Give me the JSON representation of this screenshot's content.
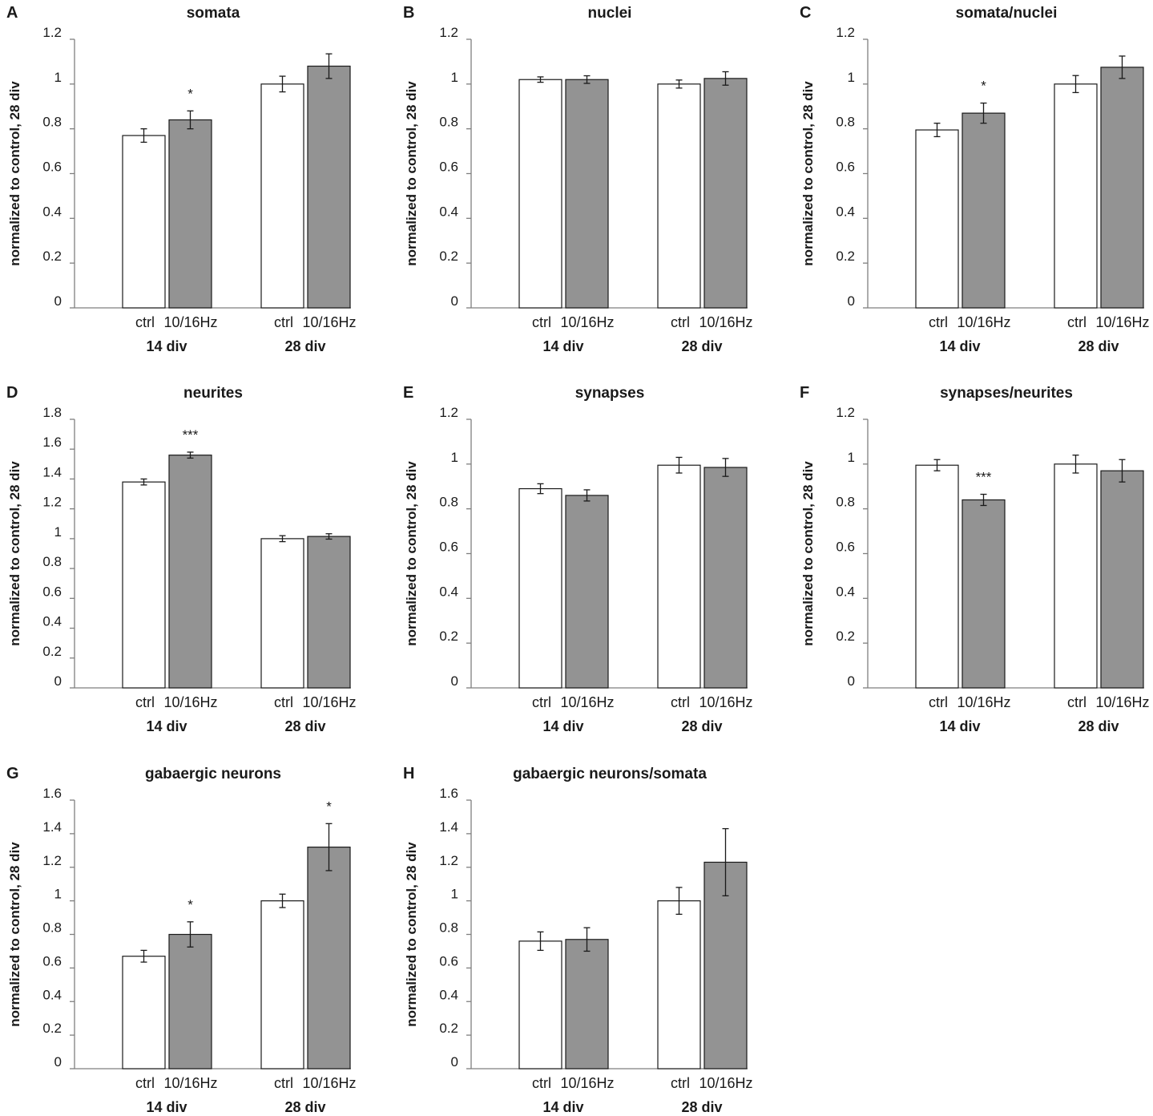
{
  "colors": {
    "ctrl_fill": "#ffffff",
    "treated_fill": "#939393",
    "axis": "#7f7f7f",
    "text": "#1a1a1a"
  },
  "chart_data": [
    {
      "letter": "A",
      "title": "somata",
      "type": "bar",
      "ylabel": "normalized to control, 28 div",
      "ylim": [
        0,
        1.2
      ],
      "ticks": [
        0,
        0.2,
        0.4,
        0.6,
        0.8,
        1,
        1.2
      ],
      "tick_labels": [
        "0",
        "0.2",
        "0.4",
        "0.6",
        "0.8",
        "1",
        "1.2"
      ],
      "groups": [
        {
          "label": "14 div",
          "bars": [
            {
              "label": "ctrl",
              "value": 0.77,
              "err": 0.03,
              "sig": ""
            },
            {
              "label": "10/16Hz",
              "value": 0.84,
              "err": 0.04,
              "sig": "*"
            }
          ]
        },
        {
          "label": "28 div",
          "bars": [
            {
              "label": "ctrl",
              "value": 1.0,
              "err": 0.035,
              "sig": ""
            },
            {
              "label": "10/16Hz",
              "value": 1.08,
              "err": 0.055,
              "sig": ""
            }
          ]
        }
      ]
    },
    {
      "letter": "B",
      "title": "nuclei",
      "type": "bar",
      "ylabel": "normalized to control, 28 div",
      "ylim": [
        0,
        1.2
      ],
      "ticks": [
        0,
        0.2,
        0.4,
        0.6,
        0.8,
        1,
        1.2
      ],
      "tick_labels": [
        "0",
        "0.2",
        "0.4",
        "0.6",
        "0.8",
        "1",
        "1.2"
      ],
      "groups": [
        {
          "label": "14 div",
          "bars": [
            {
              "label": "ctrl",
              "value": 1.02,
              "err": 0.012,
              "sig": ""
            },
            {
              "label": "10/16Hz",
              "value": 1.02,
              "err": 0.017,
              "sig": ""
            }
          ]
        },
        {
          "label": "28 div",
          "bars": [
            {
              "label": "ctrl",
              "value": 1.0,
              "err": 0.018,
              "sig": ""
            },
            {
              "label": "10/16Hz",
              "value": 1.025,
              "err": 0.03,
              "sig": ""
            }
          ]
        }
      ]
    },
    {
      "letter": "C",
      "title": "somata/nuclei",
      "type": "bar",
      "ylabel": "normalized to control, 28 div",
      "ylim": [
        0,
        1.2
      ],
      "ticks": [
        0,
        0.2,
        0.4,
        0.6,
        0.8,
        1,
        1.2
      ],
      "tick_labels": [
        "0",
        "0.2",
        "0.4",
        "0.6",
        "0.8",
        "1",
        "1.2"
      ],
      "groups": [
        {
          "label": "14 div",
          "bars": [
            {
              "label": "ctrl",
              "value": 0.795,
              "err": 0.03,
              "sig": ""
            },
            {
              "label": "10/16Hz",
              "value": 0.87,
              "err": 0.045,
              "sig": "*"
            }
          ]
        },
        {
          "label": "28 div",
          "bars": [
            {
              "label": "ctrl",
              "value": 1.0,
              "err": 0.038,
              "sig": ""
            },
            {
              "label": "10/16Hz",
              "value": 1.075,
              "err": 0.05,
              "sig": ""
            }
          ]
        }
      ]
    },
    {
      "letter": "D",
      "title": "neurites",
      "type": "bar",
      "ylabel": "normalized to control, 28 div",
      "ylim": [
        0,
        1.8
      ],
      "ticks": [
        0,
        0.2,
        0.4,
        0.6,
        0.8,
        1,
        1.2,
        1.4,
        1.6,
        1.8
      ],
      "tick_labels": [
        "0",
        "0.2",
        "0.4",
        "0.6",
        "0.8",
        "1",
        "1.2",
        "1.4",
        "1.6",
        "1.8"
      ],
      "groups": [
        {
          "label": "14 div",
          "bars": [
            {
              "label": "ctrl",
              "value": 1.38,
              "err": 0.02,
              "sig": ""
            },
            {
              "label": "10/16Hz",
              "value": 1.56,
              "err": 0.02,
              "sig": "***"
            }
          ]
        },
        {
          "label": "28 div",
          "bars": [
            {
              "label": "ctrl",
              "value": 1.0,
              "err": 0.02,
              "sig": ""
            },
            {
              "label": "10/16Hz",
              "value": 1.015,
              "err": 0.018,
              "sig": ""
            }
          ]
        }
      ]
    },
    {
      "letter": "E",
      "title": "synapses",
      "type": "bar",
      "ylabel": "normalized to control, 28 div",
      "ylim": [
        0,
        1.2
      ],
      "ticks": [
        0,
        0.2,
        0.4,
        0.6,
        0.8,
        1,
        1.2
      ],
      "tick_labels": [
        "0",
        "0.2",
        "0.4",
        "0.6",
        "0.8",
        "1",
        "1.2"
      ],
      "groups": [
        {
          "label": "14 div",
          "bars": [
            {
              "label": "ctrl",
              "value": 0.89,
              "err": 0.022,
              "sig": ""
            },
            {
              "label": "10/16Hz",
              "value": 0.86,
              "err": 0.025,
              "sig": ""
            }
          ]
        },
        {
          "label": "28 div",
          "bars": [
            {
              "label": "ctrl",
              "value": 0.995,
              "err": 0.035,
              "sig": ""
            },
            {
              "label": "10/16Hz",
              "value": 0.985,
              "err": 0.04,
              "sig": ""
            }
          ]
        }
      ]
    },
    {
      "letter": "F",
      "title": "synapses/neurites",
      "type": "bar",
      "ylabel": "normalized to control, 28 div",
      "ylim": [
        0,
        1.2
      ],
      "ticks": [
        0,
        0.2,
        0.4,
        0.6,
        0.8,
        1,
        1.2
      ],
      "tick_labels": [
        "0",
        "0.2",
        "0.4",
        "0.6",
        "0.8",
        "1",
        "1.2"
      ],
      "groups": [
        {
          "label": "14 div",
          "bars": [
            {
              "label": "ctrl",
              "value": 0.995,
              "err": 0.025,
              "sig": ""
            },
            {
              "label": "10/16Hz",
              "value": 0.84,
              "err": 0.025,
              "sig": "***"
            }
          ]
        },
        {
          "label": "28 div",
          "bars": [
            {
              "label": "ctrl",
              "value": 1.0,
              "err": 0.04,
              "sig": ""
            },
            {
              "label": "10/16Hz",
              "value": 0.97,
              "err": 0.05,
              "sig": ""
            }
          ]
        }
      ]
    },
    {
      "letter": "G",
      "title": "gabaergic neurons",
      "type": "bar",
      "ylabel": "normalized to control, 28 div",
      "ylim": [
        0,
        1.6
      ],
      "ticks": [
        0,
        0.2,
        0.4,
        0.6,
        0.8,
        1,
        1.2,
        1.4,
        1.6
      ],
      "tick_labels": [
        "0",
        "0.2",
        "0.4",
        "0.6",
        "0.8",
        "1",
        "1.2",
        "1.4",
        "1.6"
      ],
      "groups": [
        {
          "label": "14 div",
          "bars": [
            {
              "label": "ctrl",
              "value": 0.67,
              "err": 0.035,
              "sig": ""
            },
            {
              "label": "10/16Hz",
              "value": 0.8,
              "err": 0.075,
              "sig": "*"
            }
          ]
        },
        {
          "label": "28 div",
          "bars": [
            {
              "label": "ctrl",
              "value": 1.0,
              "err": 0.04,
              "sig": ""
            },
            {
              "label": "10/16Hz",
              "value": 1.32,
              "err": 0.14,
              "sig": "*"
            }
          ]
        }
      ]
    },
    {
      "letter": "H",
      "title": "gabaergic neurons/somata",
      "type": "bar",
      "ylabel": "normalized to control, 28 div",
      "ylim": [
        0,
        1.6
      ],
      "ticks": [
        0,
        0.2,
        0.4,
        0.6,
        0.8,
        1,
        1.2,
        1.4,
        1.6
      ],
      "tick_labels": [
        "0",
        "0.2",
        "0.4",
        "0.6",
        "0.8",
        "1",
        "1.2",
        "1.4",
        "1.6"
      ],
      "groups": [
        {
          "label": "14 div",
          "bars": [
            {
              "label": "ctrl",
              "value": 0.76,
              "err": 0.055,
              "sig": ""
            },
            {
              "label": "10/16Hz",
              "value": 0.77,
              "err": 0.07,
              "sig": ""
            }
          ]
        },
        {
          "label": "28 div",
          "bars": [
            {
              "label": "ctrl",
              "value": 1.0,
              "err": 0.08,
              "sig": ""
            },
            {
              "label": "10/16Hz",
              "value": 1.23,
              "err": 0.2,
              "sig": ""
            }
          ]
        }
      ]
    }
  ]
}
